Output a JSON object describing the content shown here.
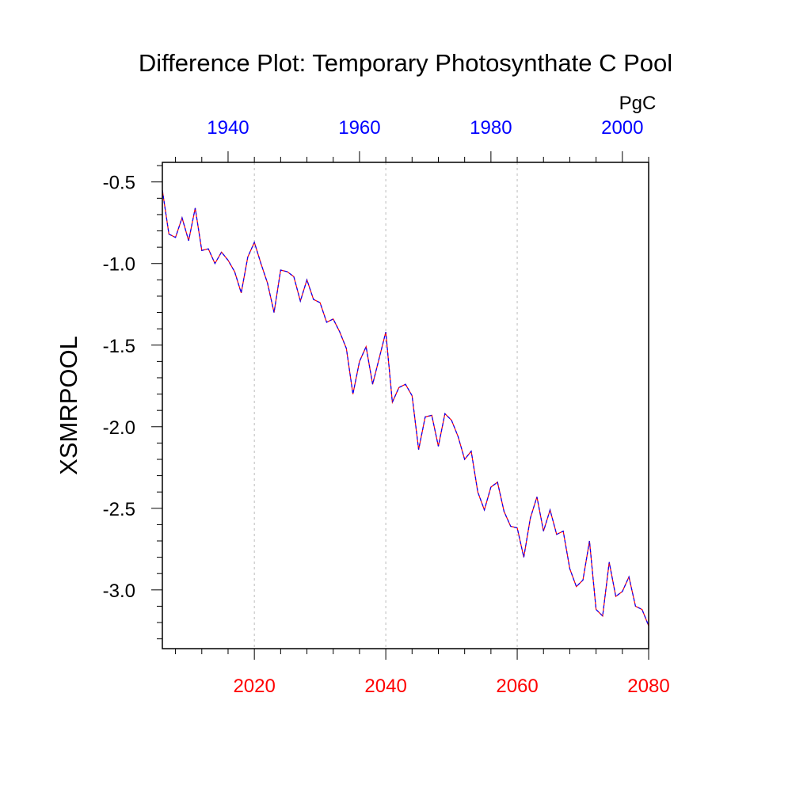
{
  "chart_data": {
    "type": "line",
    "title": "Difference Plot: Temporary Photosynthate C Pool",
    "ylabel": "XSMRPOOL",
    "units": "PgC",
    "xlim_bottom": [
      2006,
      2080
    ],
    "xlim_top": [
      1930,
      2004
    ],
    "ylim": [
      -3.36,
      -0.38
    ],
    "bottom_ticks": [
      2020,
      2040,
      2060,
      2080
    ],
    "top_ticks": [
      1940,
      1960,
      1980,
      2000
    ],
    "y_ticks": [
      -0.5,
      -1.0,
      -1.5,
      -2.0,
      -2.5,
      -3.0
    ],
    "y_tick_labels": [
      "-0.5",
      "-1.0",
      "-1.5",
      "-2.0",
      "-2.5",
      "-3.0"
    ],
    "vertical_gridlines_at": [
      2020,
      2040,
      2060
    ],
    "colors": {
      "bottom_axis": "#ff0000",
      "top_axis": "#0000ff",
      "line_a": "#ff0000",
      "line_b": "#0000ff",
      "grid": "#bbbbbb"
    },
    "series": [
      {
        "x": [
          2006,
          2007,
          2008,
          2009,
          2010,
          2011,
          2012,
          2013,
          2014,
          2015,
          2016,
          2017,
          2018,
          2019,
          2020,
          2021,
          2022,
          2023,
          2024,
          2025,
          2026,
          2027,
          2028,
          2029,
          2030,
          2031,
          2032,
          2033,
          2034,
          2035,
          2036,
          2037,
          2038,
          2039,
          2040,
          2041,
          2042,
          2043,
          2044,
          2045,
          2046,
          2047,
          2048,
          2049,
          2050,
          2051,
          2052,
          2053,
          2054,
          2055,
          2056,
          2057,
          2058,
          2059,
          2060,
          2061,
          2062,
          2063,
          2064,
          2065,
          2066,
          2067,
          2068,
          2069,
          2070,
          2071,
          2072,
          2073,
          2074,
          2075,
          2076,
          2077,
          2078,
          2079,
          2080
        ],
        "y": [
          -0.55,
          -0.82,
          -0.84,
          -0.72,
          -0.86,
          -0.66,
          -0.92,
          -0.91,
          -1.0,
          -0.93,
          -0.98,
          -1.05,
          -1.18,
          -0.96,
          -0.87,
          -1.0,
          -1.12,
          -1.3,
          -1.04,
          -1.05,
          -1.08,
          -1.23,
          -1.1,
          -1.22,
          -1.24,
          -1.36,
          -1.34,
          -1.42,
          -1.52,
          -1.8,
          -1.6,
          -1.51,
          -1.74,
          -1.58,
          -1.42,
          -1.85,
          -1.76,
          -1.74,
          -1.81,
          -2.14,
          -1.94,
          -1.93,
          -2.12,
          -1.92,
          -1.96,
          -2.06,
          -2.2,
          -2.15,
          -2.4,
          -2.51,
          -2.37,
          -2.34,
          -2.52,
          -2.61,
          -2.62,
          -2.8,
          -2.56,
          -2.43,
          -2.64,
          -2.51,
          -2.66,
          -2.64,
          -2.87,
          -2.98,
          -2.94,
          -2.7,
          -3.12,
          -3.16,
          -2.83,
          -3.04,
          -3.01,
          -2.92,
          -3.1,
          -3.12,
          -3.22
        ]
      }
    ]
  }
}
